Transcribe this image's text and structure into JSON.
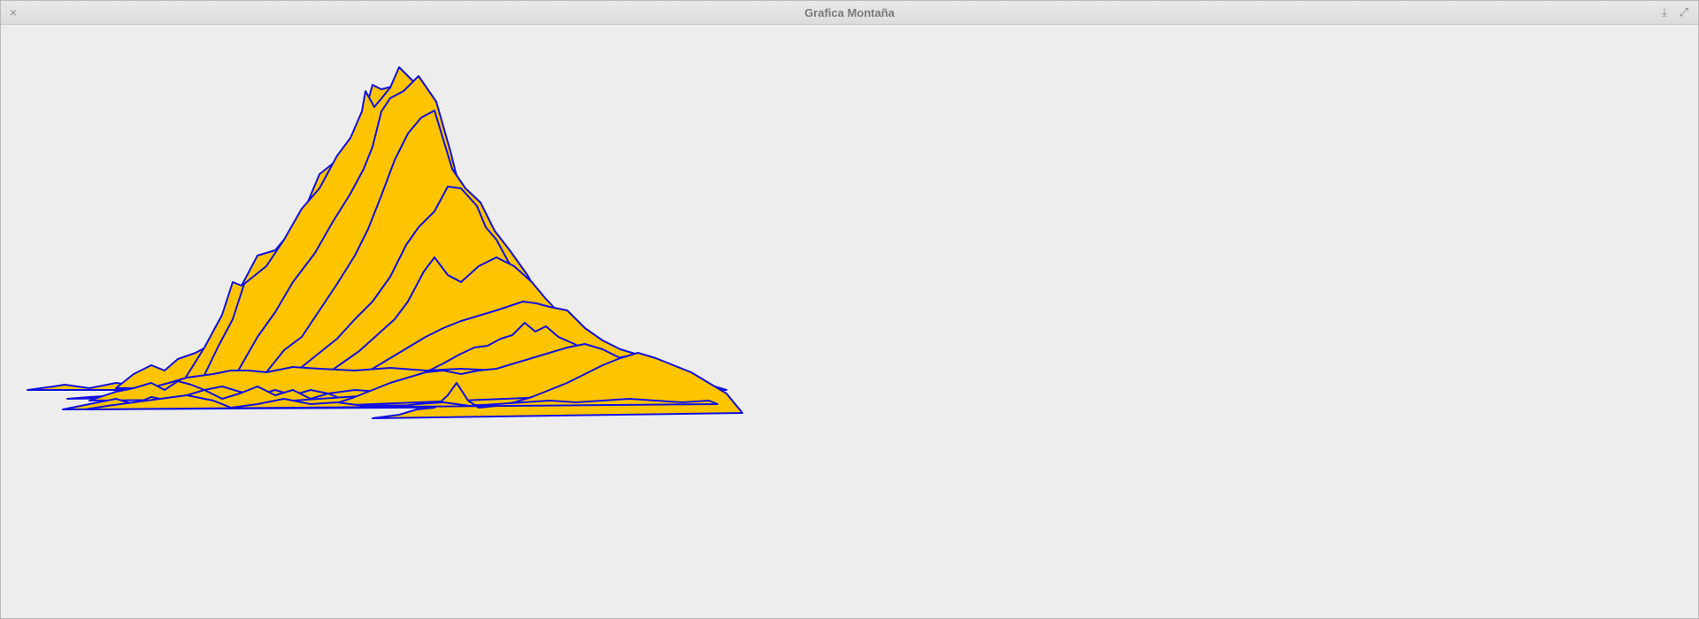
{
  "window": {
    "title": "Grafica Montaña",
    "buttons": {
      "close": "×",
      "minimize": "⤓",
      "maximize": "⤢"
    }
  },
  "colors": {
    "fill": "#ffc400",
    "stroke": "#1010e0",
    "background": "#ededed"
  }
}
